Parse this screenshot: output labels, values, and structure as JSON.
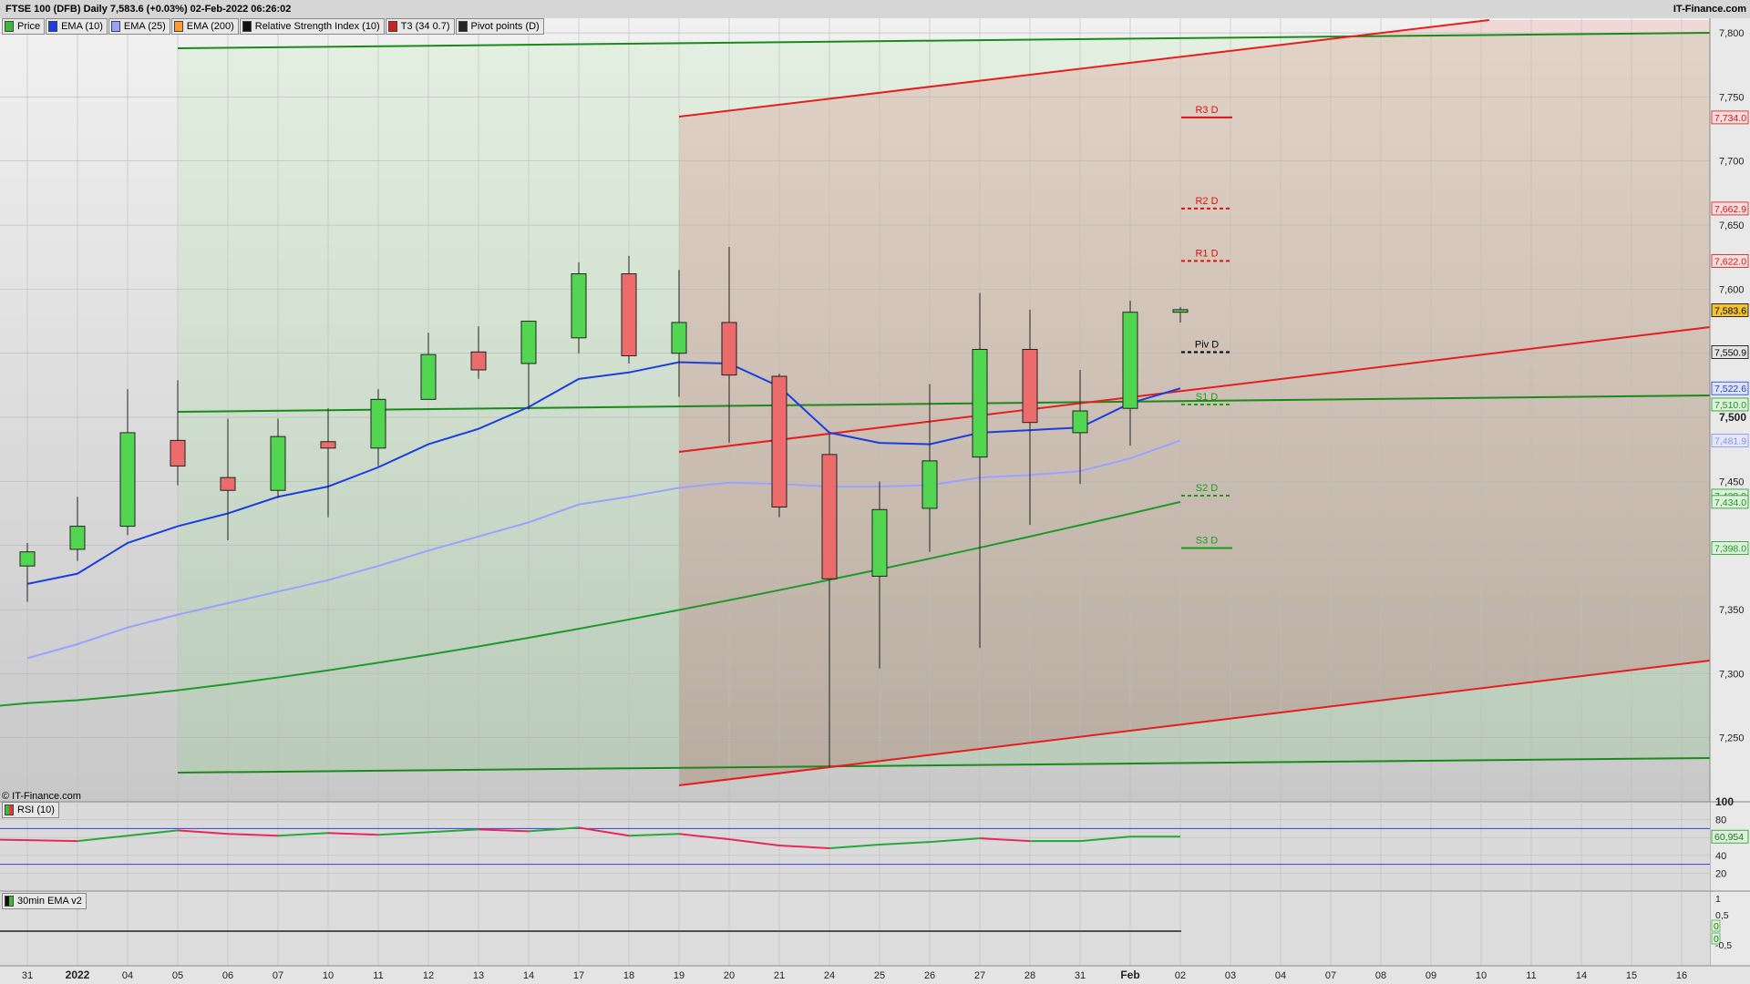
{
  "header": {
    "title": "FTSE 100 (DFB) Daily 7,583.6 (+0.03%) 02-Feb-2022 06:26:02",
    "brand": "IT-Finance.com",
    "copyright": "© IT-Finance.com"
  },
  "legend": [
    {
      "label": "Price",
      "color": "#3cb83c"
    },
    {
      "label": "EMA (10)",
      "color": "#1a3fe0"
    },
    {
      "label": "EMA (25)",
      "color": "#9aa2ff"
    },
    {
      "label": "EMA (200)",
      "color": "#ff9a2e"
    },
    {
      "label": "Relative Strength Index (10)",
      "color": "#111111"
    },
    {
      "label": "T3 (34 0.7)",
      "color": "#cc2222"
    },
    {
      "label": "Pivot points (D)",
      "color": "#222222"
    }
  ],
  "chart_data": {
    "type": "candlestick",
    "ylim": [
      7200,
      7810
    ],
    "y_ticks": [
      "7,250",
      "7,300",
      "7,350",
      "7,400",
      "7,450",
      "7,500",
      "7,550",
      "7,600",
      "7,650",
      "7,700",
      "7,750",
      "7,800"
    ],
    "x_labels": [
      "31",
      "2022",
      "04",
      "05",
      "06",
      "07",
      "10",
      "11",
      "12",
      "13",
      "14",
      "17",
      "18",
      "19",
      "20",
      "21",
      "24",
      "25",
      "26",
      "27",
      "28",
      "31",
      "Feb",
      "02",
      "03",
      "04",
      "07",
      "08",
      "09",
      "10",
      "11",
      "14",
      "15",
      "16"
    ],
    "candles": [
      {
        "x": "31",
        "open": 7384,
        "high": 7402,
        "low": 7356,
        "close": 7395
      },
      {
        "x": "2022",
        "open": 7397,
        "high": 7438,
        "low": 7388,
        "close": 7415
      },
      {
        "x": "04",
        "open": 7415,
        "high": 7522,
        "low": 7408,
        "close": 7488
      },
      {
        "x": "05",
        "open": 7482,
        "high": 7529,
        "low": 7447,
        "close": 7462
      },
      {
        "x": "06",
        "open": 7453,
        "high": 7499,
        "low": 7404,
        "close": 7443
      },
      {
        "x": "07",
        "open": 7443,
        "high": 7499,
        "low": 7437,
        "close": 7485
      },
      {
        "x": "10",
        "open": 7481,
        "high": 7507,
        "low": 7422,
        "close": 7476
      },
      {
        "x": "11",
        "open": 7476,
        "high": 7522,
        "low": 7462,
        "close": 7514
      },
      {
        "x": "12",
        "open": 7514,
        "high": 7566,
        "low": 7514,
        "close": 7549
      },
      {
        "x": "13",
        "open": 7551,
        "high": 7571,
        "low": 7530,
        "close": 7537
      },
      {
        "x": "14",
        "open": 7542,
        "high": 7569,
        "low": 7506,
        "close": 7575
      },
      {
        "x": "17",
        "open": 7562,
        "high": 7621,
        "low": 7550,
        "close": 7612
      },
      {
        "x": "18",
        "open": 7612,
        "high": 7626,
        "low": 7542,
        "close": 7548
      },
      {
        "x": "19",
        "open": 7550,
        "high": 7615,
        "low": 7516,
        "close": 7574
      },
      {
        "x": "20",
        "open": 7574,
        "high": 7633,
        "low": 7480,
        "close": 7533
      },
      {
        "x": "21",
        "open": 7532,
        "high": 7534,
        "low": 7422,
        "close": 7430
      },
      {
        "x": "24",
        "open": 7471,
        "high": 7487,
        "low": 7227,
        "close": 7374
      },
      {
        "x": "25",
        "open": 7376,
        "high": 7450,
        "low": 7304,
        "close": 7428
      },
      {
        "x": "26",
        "open": 7429,
        "high": 7526,
        "low": 7395,
        "close": 7466
      },
      {
        "x": "27",
        "open": 7469,
        "high": 7597,
        "low": 7320,
        "close": 7553
      },
      {
        "x": "28",
        "open": 7553,
        "high": 7584,
        "low": 7416,
        "close": 7496
      },
      {
        "x": "31",
        "open": 7488,
        "high": 7537,
        "low": 7448,
        "close": 7505
      },
      {
        "x": "Feb",
        "open": 7507,
        "high": 7591,
        "low": 7478,
        "close": 7582
      },
      {
        "x": "02",
        "open": 7582,
        "high": 7586,
        "low": 7574,
        "close": 7584
      }
    ],
    "ema10": [
      7370,
      7378,
      7402,
      7415,
      7425,
      7438,
      7446,
      7461,
      7479,
      7491,
      7508,
      7530,
      7535,
      7543,
      7542,
      7524,
      7488,
      7480,
      7479,
      7488,
      7490,
      7492,
      7511,
      7522.6
    ],
    "ema25": [
      7312,
      7323,
      7336,
      7346,
      7355,
      7364,
      7373,
      7384,
      7396,
      7407,
      7418,
      7432,
      7438,
      7445,
      7449,
      7448,
      7446,
      7446,
      7447,
      7453,
      7455,
      7458,
      7468,
      7481.9
    ],
    "ema200_start": 7277,
    "ema200_end": 7434,
    "pivots": [
      {
        "label": "R3 D",
        "value": 7734.0,
        "color": "#e01010",
        "dash": false
      },
      {
        "label": "R2 D",
        "value": 7662.9,
        "color": "#e01010",
        "dash": true
      },
      {
        "label": "R1 D",
        "value": 7622.0,
        "color": "#e01010",
        "dash": true
      },
      {
        "label": "Piv D",
        "value": 7550.9,
        "color": "#000000",
        "dash": true
      },
      {
        "label": "S1 D",
        "value": 7510.0,
        "color": "#1a9c1a",
        "dash": true
      },
      {
        "label": "S2 D",
        "value": 7438.9,
        "color": "#1a9c1a",
        "dash": true
      },
      {
        "label": "S3 D",
        "value": 7398.0,
        "color": "#1a9c1a",
        "dash": false
      }
    ],
    "price_tags": [
      {
        "text": "7,734.0",
        "value": 7734.0,
        "color": "#e01010",
        "bg": "#f4dede"
      },
      {
        "text": "7,662.9",
        "value": 7662.9,
        "color": "#e01010",
        "bg": "#f4dede"
      },
      {
        "text": "7,622.0",
        "value": 7622.0,
        "color": "#e01010",
        "bg": "#f4dede"
      },
      {
        "text": "7,583.6",
        "value": 7583.6,
        "color": "#000000",
        "bg": "#f2c230"
      },
      {
        "text": "7,550.9",
        "value": 7550.9,
        "color": "#000000",
        "bg": "#e4e4e4"
      },
      {
        "text": "7,522.6",
        "value": 7522.6,
        "color": "#1a3fe0",
        "bg": "#dfe3f6"
      },
      {
        "text": "7,510.0",
        "value": 7510.0,
        "color": "#1a9c1a",
        "bg": "#dff0df"
      },
      {
        "text": "7,481.9",
        "value": 7481.9,
        "color": "#8890ee",
        "bg": "#e6e7f6"
      },
      {
        "text": "7,438.9",
        "value": 7438.9,
        "color": "#1a9c1a",
        "bg": "#dff0df"
      },
      {
        "text": "7,434.0",
        "value": 7434.0,
        "color": "#1a9c1a",
        "bg": "#dff0df"
      },
      {
        "text": "7,398.0",
        "value": 7398.0,
        "color": "#1a9c1a",
        "bg": "#dff0df"
      }
    ],
    "rsi": {
      "label": "RSI (10)",
      "values": [
        57,
        56,
        62,
        68,
        64,
        62,
        65,
        63,
        66,
        69,
        67,
        71,
        62,
        64,
        58,
        51,
        48,
        52,
        55,
        59,
        56,
        56,
        61,
        61
      ],
      "current": "60,954",
      "ticks": [
        "100",
        "80",
        "60",
        "40",
        "20"
      ],
      "bands": [
        70,
        30
      ]
    },
    "ema30": {
      "label": "30min EMA v2",
      "ticks": [
        "1",
        "0,5",
        "0",
        "0",
        "-0,5"
      ]
    }
  }
}
